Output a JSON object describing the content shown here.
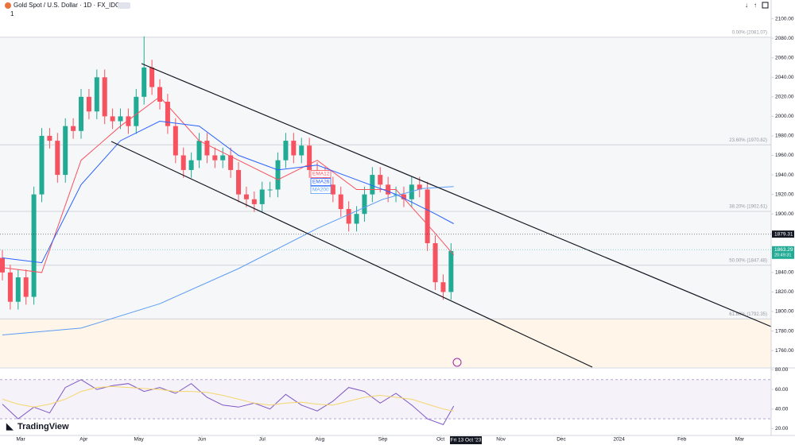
{
  "header": {
    "title": "Gold Spot / U.S. Dollar · 1D · FX_IDC",
    "badge": "1"
  },
  "branding": "TradingView",
  "chart_data": [
    {
      "type": "candlestick",
      "x": [
        0,
        3,
        6,
        9,
        12,
        15,
        18,
        21,
        24,
        27,
        30,
        33,
        36,
        39,
        42,
        45,
        48,
        51,
        54,
        57,
        60,
        63,
        66,
        69,
        72,
        75,
        78,
        81,
        84,
        87,
        90,
        93,
        96,
        99,
        102,
        105,
        108,
        111,
        114,
        117,
        120,
        123,
        126,
        129,
        132,
        135,
        138,
        141,
        144,
        147,
        150,
        153,
        156,
        159,
        162,
        165,
        168,
        171
      ],
      "open": [
        1855,
        1840,
        1810,
        1835,
        1815,
        1920,
        1980,
        1975,
        1940,
        1990,
        1985,
        2020,
        2005,
        2040,
        2000,
        1995,
        2000,
        1990,
        2020,
        2050,
        2030,
        2015,
        1990,
        1960,
        1945,
        1955,
        1975,
        1960,
        1955,
        1960,
        1945,
        1920,
        1915,
        1910,
        1925,
        1925,
        1955,
        1975,
        1960,
        1970,
        1945,
        1940,
        1930,
        1920,
        1905,
        1890,
        1900,
        1920,
        1940,
        1930,
        1920,
        1920,
        1915,
        1930,
        1925,
        1870,
        1830,
        1820
      ],
      "high": [
        1863,
        1848,
        1843,
        1843,
        1928,
        1988,
        1988,
        1983,
        1998,
        1998,
        2028,
        2028,
        2048,
        2048,
        2008,
        2008,
        2008,
        2028,
        2082,
        2058,
        2038,
        2023,
        1998,
        1968,
        1963,
        1983,
        1983,
        1968,
        1968,
        1968,
        1953,
        1928,
        1923,
        1933,
        1933,
        1963,
        1983,
        1983,
        1978,
        1978,
        1953,
        1948,
        1938,
        1928,
        1913,
        1908,
        1928,
        1948,
        1948,
        1938,
        1928,
        1928,
        1938,
        1938,
        1933,
        1878,
        1838,
        1870
      ],
      "low": [
        1832,
        1802,
        1802,
        1807,
        1807,
        1912,
        1967,
        1932,
        1932,
        1977,
        1977,
        1997,
        1997,
        1992,
        1987,
        1987,
        1982,
        1982,
        2012,
        2022,
        2007,
        1982,
        1952,
        1937,
        1937,
        1947,
        1952,
        1947,
        1947,
        1937,
        1912,
        1907,
        1902,
        1902,
        1917,
        1917,
        1947,
        1952,
        1952,
        1937,
        1932,
        1922,
        1912,
        1897,
        1882,
        1882,
        1892,
        1912,
        1922,
        1912,
        1912,
        1907,
        1907,
        1917,
        1862,
        1822,
        1812,
        1812
      ],
      "close": [
        1840,
        1810,
        1835,
        1815,
        1920,
        1980,
        1975,
        1940,
        1990,
        1985,
        2020,
        2005,
        2040,
        2000,
        1995,
        2000,
        1990,
        2020,
        2050,
        2030,
        2015,
        1990,
        1960,
        1945,
        1955,
        1975,
        1960,
        1955,
        1960,
        1945,
        1920,
        1915,
        1910,
        1925,
        1925,
        1955,
        1975,
        1960,
        1970,
        1945,
        1940,
        1930,
        1920,
        1905,
        1890,
        1900,
        1920,
        1940,
        1930,
        1920,
        1920,
        1915,
        1930,
        1925,
        1870,
        1830,
        1820,
        1862
      ],
      "up_color": "#22ab94",
      "down_color": "#f7525f",
      "xlim": [
        0,
        293
      ],
      "xticks": [
        {
          "value": 7,
          "label": "Mar"
        },
        {
          "value": 31,
          "label": "Apr"
        },
        {
          "value": 52,
          "label": "May"
        },
        {
          "value": 76,
          "label": "Jun"
        },
        {
          "value": 99,
          "label": "Jul"
        },
        {
          "value": 121,
          "label": "Aug"
        },
        {
          "value": 145,
          "label": "Sep"
        },
        {
          "value": 167,
          "label": "Oct"
        },
        {
          "value": 190,
          "label": "Nov"
        },
        {
          "value": 213,
          "label": "Dec"
        },
        {
          "value": 235,
          "label": "2024"
        },
        {
          "value": 259,
          "label": "Feb"
        },
        {
          "value": 281,
          "label": "Mar"
        }
      ],
      "ylim": [
        1743,
        2107
      ],
      "yticks": [
        {
          "value": 1760,
          "label": "1760.00"
        },
        {
          "value": 1780,
          "label": "1780.00"
        },
        {
          "value": 1800,
          "label": "1800.00"
        },
        {
          "value": 1820,
          "label": "1820.00"
        },
        {
          "value": 1840,
          "label": "1840.00"
        },
        {
          "value": 1860,
          "label": "1860.00"
        },
        {
          "value": 1880,
          "label": "1880.00"
        },
        {
          "value": 1900,
          "label": "1900.00"
        },
        {
          "value": 1920,
          "label": "1920.00"
        },
        {
          "value": 1940,
          "label": "1940.00"
        },
        {
          "value": 1960,
          "label": "1960.00"
        },
        {
          "value": 1980,
          "label": "1980.00"
        },
        {
          "value": 2000,
          "label": "2000.00"
        },
        {
          "value": 2020,
          "label": "2020.00"
        },
        {
          "value": 2040,
          "label": "2040.00"
        },
        {
          "value": 2060,
          "label": "2060.00"
        },
        {
          "value": 2080,
          "label": "2080.00"
        },
        {
          "value": 2100,
          "label": "2100.00"
        }
      ],
      "series": [
        {
          "name": "EMA12",
          "color": "#f7525f",
          "x": [
            0,
            15,
            30,
            45,
            60,
            75,
            90,
            105,
            120,
            135,
            150,
            165,
            172
          ],
          "values": [
            1845,
            1840,
            1955,
            1990,
            2020,
            1975,
            1955,
            1935,
            1955,
            1925,
            1925,
            1880,
            1858
          ]
        },
        {
          "name": "EMA26",
          "color": "#2962ff",
          "x": [
            0,
            15,
            30,
            45,
            60,
            75,
            90,
            105,
            120,
            135,
            150,
            165,
            172
          ],
          "values": [
            1855,
            1850,
            1930,
            1975,
            1995,
            1990,
            1960,
            1945,
            1950,
            1935,
            1920,
            1900,
            1890
          ]
        },
        {
          "name": "MA200",
          "color": "#5b9cf6",
          "x": [
            0,
            30,
            60,
            90,
            120,
            145,
            160,
            172
          ],
          "values": [
            1776,
            1783,
            1808,
            1844,
            1885,
            1915,
            1926,
            1928
          ]
        }
      ],
      "fib_levels": [
        {
          "value": 2081.07,
          "label": "0.00% (2081.07)"
        },
        {
          "value": 1970.82,
          "label": "23.60% (1970.82)"
        },
        {
          "value": 1902.61,
          "label": "38.20% (1902.61)"
        },
        {
          "value": 1847.48,
          "label": "50.00% (1847.48)"
        },
        {
          "value": 1792.35,
          "label": "61.80% (1792.35)"
        }
      ],
      "price_tags": [
        {
          "value": 1879.31,
          "label": "1879.31",
          "color": "#131722"
        },
        {
          "value": 1863.29,
          "label": "1863.29",
          "color": "#22ab94",
          "countdown": "20:49:31"
        }
      ],
      "cursor_date": "Fri 13 Oct '23"
    },
    {
      "type": "line",
      "ylim": [
        13,
        82
      ],
      "yticks": [
        {
          "value": 20,
          "label": "20.00"
        },
        {
          "value": 40,
          "label": "40.00"
        },
        {
          "value": 60,
          "label": "60.00"
        },
        {
          "value": 80,
          "label": "80.00"
        }
      ],
      "band": [
        30,
        70
      ],
      "series": [
        {
          "color": "#7e57c2",
          "x": [
            0,
            6,
            12,
            18,
            24,
            30,
            36,
            42,
            48,
            54,
            60,
            66,
            72,
            78,
            84,
            90,
            96,
            102,
            108,
            114,
            120,
            126,
            132,
            138,
            144,
            150,
            156,
            162,
            168,
            172
          ],
          "values": [
            45,
            30,
            42,
            36,
            62,
            70,
            60,
            64,
            66,
            58,
            62,
            56,
            66,
            52,
            44,
            42,
            46,
            40,
            55,
            44,
            38,
            48,
            62,
            58,
            46,
            56,
            44,
            30,
            24,
            43
          ]
        },
        {
          "color": "#f5d66b",
          "x": [
            0,
            6,
            12,
            18,
            24,
            30,
            36,
            42,
            48,
            54,
            60,
            66,
            72,
            78,
            84,
            90,
            96,
            102,
            108,
            114,
            120,
            126,
            132,
            138,
            144,
            150,
            156,
            162,
            168,
            172
          ],
          "values": [
            50,
            45,
            42,
            45,
            50,
            58,
            62,
            63,
            62,
            61,
            60,
            58,
            58,
            57,
            54,
            50,
            46,
            44,
            46,
            47,
            45,
            44,
            48,
            52,
            54,
            52,
            50,
            45,
            40,
            38
          ]
        }
      ]
    }
  ]
}
